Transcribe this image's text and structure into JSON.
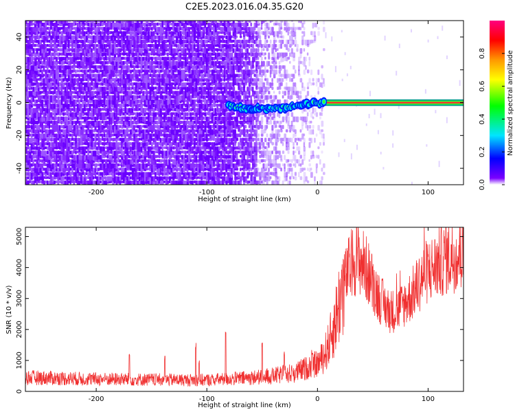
{
  "title": "C2E5.2023.016.04.35.G20",
  "chart_data": [
    {
      "type": "heatmap",
      "name": "spectrogram",
      "xlabel": "Height of straight line (km)",
      "ylabel": "Frequency (Hz)",
      "xlim": [
        -264,
        132
      ],
      "ylim": [
        -50,
        50
      ],
      "x_ticks": [
        -200,
        -100,
        0,
        100
      ],
      "y_ticks": [
        -40,
        -20,
        0,
        20,
        40
      ],
      "colorbar": {
        "label": "Normalized spectral amplitude",
        "range": [
          0,
          1
        ],
        "ticks": [
          "0.0",
          "0.2",
          "0.4",
          "0.6",
          "0.8"
        ],
        "colormap": [
          "#ffffff",
          "#7a00ff",
          "#0000ff",
          "#00e5ff",
          "#00ff00",
          "#ffff00",
          "#ff9900",
          "#ff0000",
          "#ff007f"
        ]
      },
      "features": {
        "noise_region_x": [
          -264,
          -80
        ],
        "noise_fade_x": [
          -80,
          5
        ],
        "signal_trace": {
          "x": [
            -80,
            -70,
            -60,
            -50,
            -40,
            -30,
            -20,
            -10,
            0,
            10,
            20,
            40,
            60,
            80,
            100,
            132
          ],
          "frequency": [
            -2,
            -3,
            -3.5,
            -4,
            -3.5,
            -3,
            -2,
            -1,
            -0.5,
            0,
            0,
            0,
            0,
            0,
            0,
            0
          ]
        }
      }
    },
    {
      "type": "line",
      "name": "snr",
      "xlabel": "Height of straight line (km)",
      "ylabel": "SNR (10 * v/v)",
      "xlim": [
        -264,
        132
      ],
      "ylim": [
        0,
        5300
      ],
      "x_ticks": [
        -200,
        -100,
        0,
        100
      ],
      "y_ticks": [
        0,
        1000,
        2000,
        3000,
        4000,
        5000
      ],
      "line_color": "#f03030",
      "envelope": {
        "x": [
          -264,
          -240,
          -200,
          -150,
          -120,
          -100,
          -80,
          -60,
          -40,
          -20,
          -10,
          0,
          5,
          10,
          15,
          20,
          25,
          30,
          35,
          40,
          45,
          50,
          55,
          60,
          65,
          70,
          75,
          80,
          85,
          90,
          95,
          100,
          105,
          110,
          115,
          120,
          125,
          132
        ],
        "y": [
          450,
          430,
          400,
          380,
          370,
          370,
          400,
          440,
          500,
          600,
          750,
          900,
          1100,
          1500,
          2100,
          2900,
          3600,
          4100,
          4300,
          4200,
          3900,
          3500,
          3100,
          2800,
          2600,
          2600,
          2700,
          2900,
          3100,
          3400,
          3700,
          3900,
          4000,
          4150,
          4250,
          4350,
          4400,
          4400
        ]
      },
      "spikes": [
        {
          "x": -170,
          "y": 1300
        },
        {
          "x": -138,
          "y": 1150
        },
        {
          "x": -110,
          "y": 1600
        },
        {
          "x": -107,
          "y": 1000
        },
        {
          "x": -83,
          "y": 2100
        },
        {
          "x": -50,
          "y": 1600
        },
        {
          "x": -30,
          "y": 1350
        },
        {
          "x": -5,
          "y": 1400
        }
      ]
    }
  ]
}
